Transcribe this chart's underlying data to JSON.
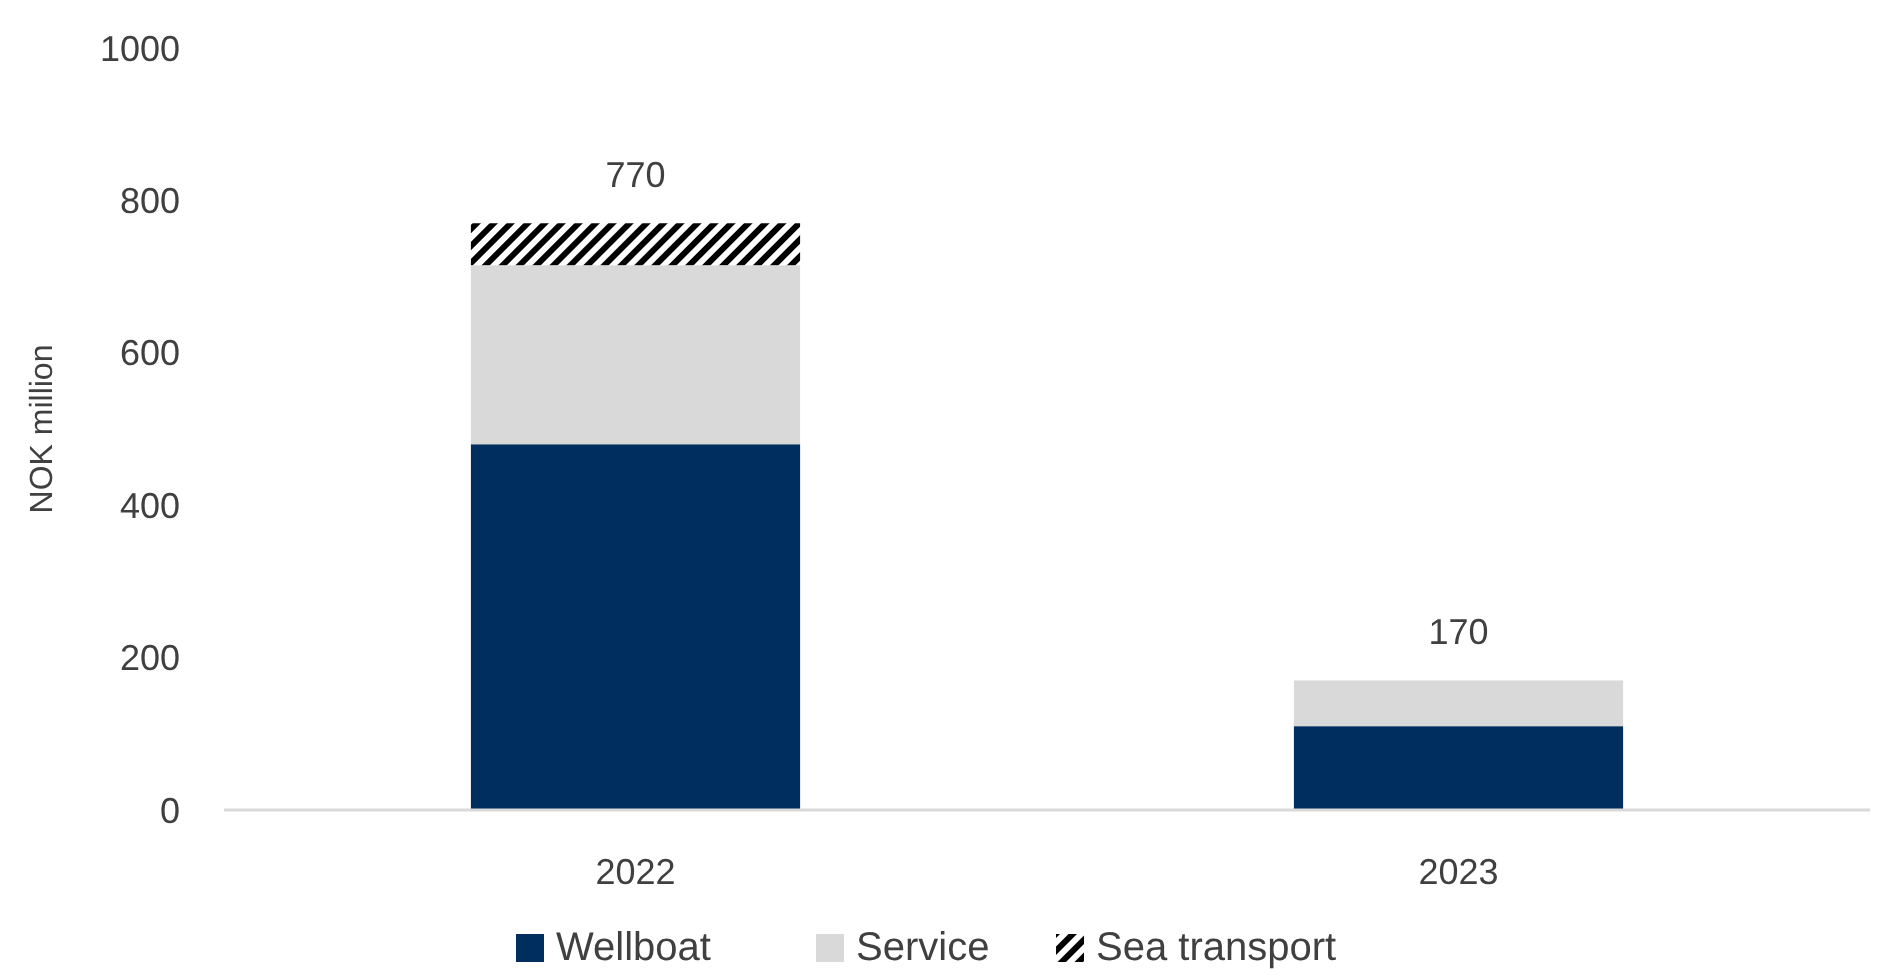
{
  "chart_data": {
    "type": "bar",
    "stacked": true,
    "ylabel": "NOK million",
    "categories": [
      "2022",
      "2023"
    ],
    "series": [
      {
        "name": "Wellboat",
        "color": "#002f5f",
        "values": [
          480,
          110
        ]
      },
      {
        "name": "Service",
        "color": "#d9d9d9",
        "values": [
          235,
          60
        ]
      },
      {
        "name": "Sea transport",
        "color": "#000000",
        "values": [
          55,
          null
        ]
      }
    ],
    "ylim": [
      0,
      1000
    ],
    "yticks": [
      0,
      200,
      400,
      600,
      800,
      1000
    ],
    "totals": [
      "770",
      "170"
    ],
    "grid": false,
    "legend": "bottom"
  }
}
